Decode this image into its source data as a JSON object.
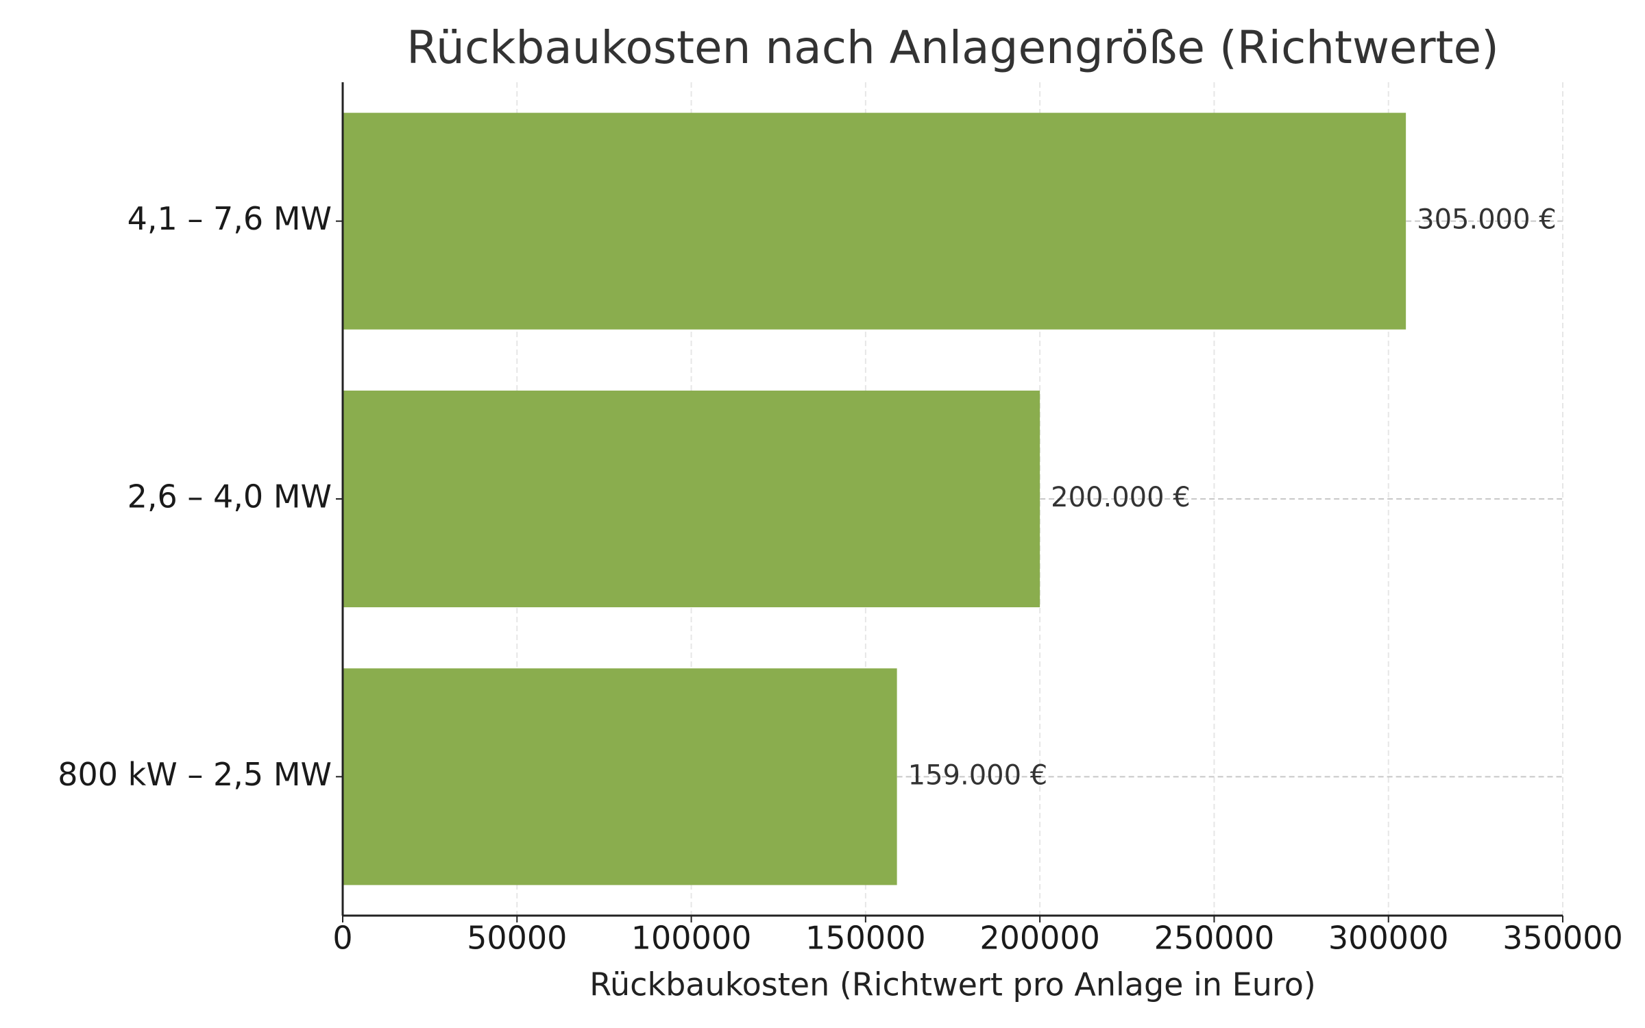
{
  "chart_data": {
    "type": "bar",
    "orientation": "horizontal",
    "title": "Rückbaukosten nach Anlagengröße (Richtwerte)",
    "x_label": "Rückbaukosten (Richtwert pro Anlage in Euro)",
    "categories": [
      "4,1 – 7,6 MW",
      "2,6 – 4,0 MW",
      "800 kW – 2,5 MW"
    ],
    "values": [
      305000,
      200000,
      159000
    ],
    "value_labels": [
      "305.000 €",
      "200.000 €",
      "159.000 €"
    ],
    "color": "#8aad4e",
    "xlim": [
      0,
      350000
    ],
    "xticks": [
      0,
      50000,
      100000,
      150000,
      200000,
      250000,
      300000,
      350000
    ],
    "grid": true
  }
}
